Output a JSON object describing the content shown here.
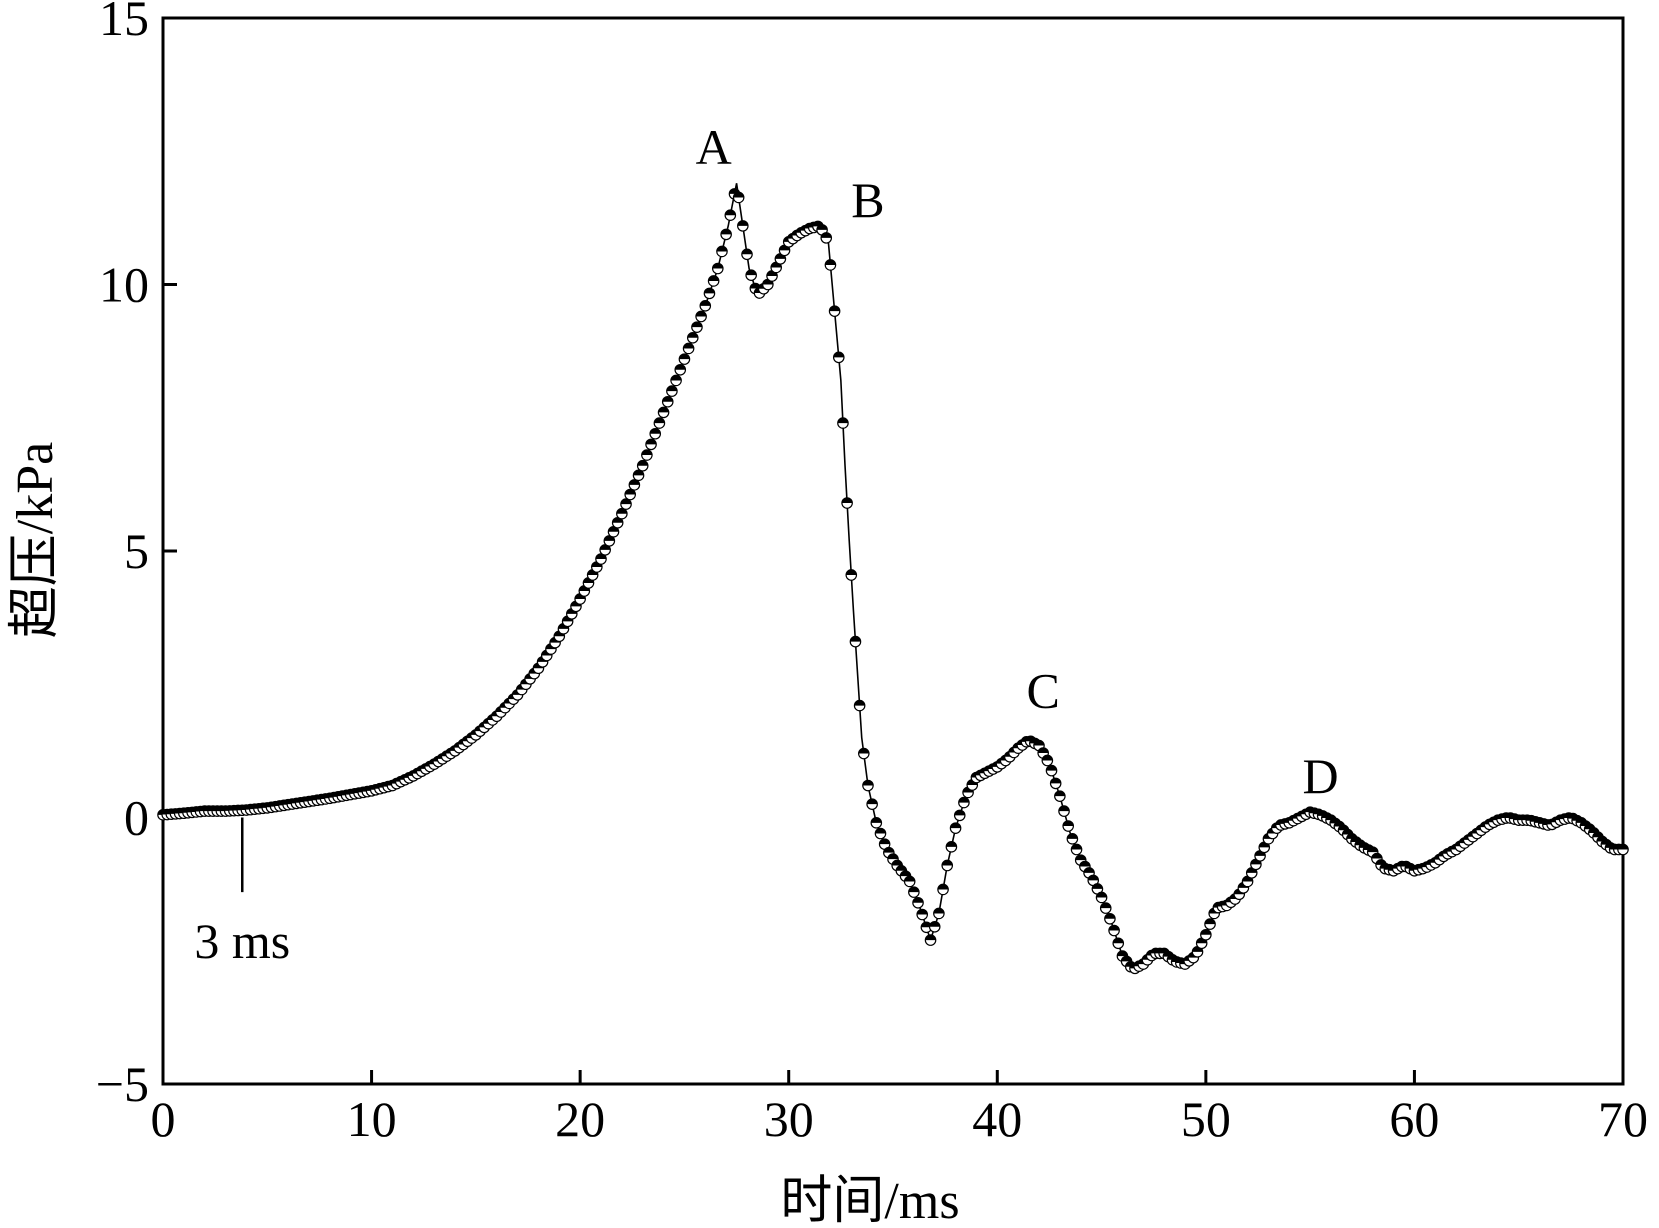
{
  "chart_data": {
    "type": "scatter",
    "title": "",
    "xlabel": "时间/ms",
    "ylabel": "超压/kPa",
    "xlim": [
      0,
      70
    ],
    "ylim": [
      -5,
      15
    ],
    "x_ticks": [
      "0",
      "10",
      "20",
      "30",
      "40",
      "50",
      "60",
      "70"
    ],
    "y_ticks": [
      "−5",
      "0",
      "5",
      "10",
      "15"
    ],
    "grid": false,
    "legend": "none",
    "colors": {
      "line": "#000000",
      "marker_top": "#000000",
      "marker_bottom": "#ffffff",
      "axis": "#000000"
    },
    "annotations": [
      {
        "text": "A",
        "x": 26.4,
        "y": 12.6
      },
      {
        "text": "B",
        "x": 33.8,
        "y": 11.6
      },
      {
        "text": "C",
        "x": 42.2,
        "y": 2.4
      },
      {
        "text": "D",
        "x": 55.5,
        "y": 0.8
      }
    ],
    "marker_note": {
      "text": "3 ms",
      "x": 3.8,
      "y_top": 0.0,
      "y_bottom": -1.4,
      "label_y": -2.3
    },
    "series": [
      {
        "points": [
          [
            0,
            0.05
          ],
          [
            1,
            0.08
          ],
          [
            2,
            0.12
          ],
          [
            3,
            0.12
          ],
          [
            4,
            0.14
          ],
          [
            5,
            0.18
          ],
          [
            6,
            0.24
          ],
          [
            7,
            0.3
          ],
          [
            8,
            0.36
          ],
          [
            9,
            0.43
          ],
          [
            10,
            0.5
          ],
          [
            11,
            0.6
          ],
          [
            12,
            0.78
          ],
          [
            13,
            1.0
          ],
          [
            14,
            1.25
          ],
          [
            15,
            1.55
          ],
          [
            16,
            1.9
          ],
          [
            17,
            2.3
          ],
          [
            18,
            2.8
          ],
          [
            19,
            3.4
          ],
          [
            20,
            4.1
          ],
          [
            21,
            4.85
          ],
          [
            22,
            5.7
          ],
          [
            23,
            6.6
          ],
          [
            24,
            7.6
          ],
          [
            25,
            8.6
          ],
          [
            26,
            9.6
          ],
          [
            26.6,
            10.3
          ],
          [
            27.1,
            11.1
          ],
          [
            27.5,
            11.9
          ],
          [
            27.8,
            11.1
          ],
          [
            28.1,
            10.3
          ],
          [
            28.5,
            9.8
          ],
          [
            29.0,
            10.0
          ],
          [
            29.5,
            10.4
          ],
          [
            30.0,
            10.8
          ],
          [
            30.5,
            10.95
          ],
          [
            31.0,
            11.05
          ],
          [
            31.5,
            11.1
          ],
          [
            31.9,
            10.8
          ],
          [
            32.2,
            9.5
          ],
          [
            32.5,
            8.2
          ],
          [
            32.7,
            6.6
          ],
          [
            32.9,
            5.2
          ],
          [
            33.1,
            3.9
          ],
          [
            33.3,
            2.7
          ],
          [
            33.5,
            1.5
          ],
          [
            33.8,
            0.6
          ],
          [
            34.2,
            -0.1
          ],
          [
            34.7,
            -0.6
          ],
          [
            35.2,
            -0.9
          ],
          [
            35.8,
            -1.2
          ],
          [
            36.3,
            -1.7
          ],
          [
            36.8,
            -2.3
          ],
          [
            37.2,
            -1.8
          ],
          [
            37.6,
            -0.9
          ],
          [
            38.0,
            -0.2
          ],
          [
            38.5,
            0.4
          ],
          [
            39.0,
            0.75
          ],
          [
            39.5,
            0.85
          ],
          [
            40.0,
            0.95
          ],
          [
            40.5,
            1.1
          ],
          [
            41.0,
            1.3
          ],
          [
            41.5,
            1.45
          ],
          [
            42.0,
            1.35
          ],
          [
            42.5,
            1.0
          ],
          [
            43.0,
            0.4
          ],
          [
            43.5,
            -0.3
          ],
          [
            44.0,
            -0.8
          ],
          [
            44.5,
            -1.1
          ],
          [
            45.0,
            -1.5
          ],
          [
            45.5,
            -2.0
          ],
          [
            46.0,
            -2.6
          ],
          [
            46.5,
            -2.85
          ],
          [
            47.0,
            -2.75
          ],
          [
            47.5,
            -2.55
          ],
          [
            48.0,
            -2.55
          ],
          [
            48.5,
            -2.7
          ],
          [
            49.0,
            -2.75
          ],
          [
            49.5,
            -2.6
          ],
          [
            50.0,
            -2.2
          ],
          [
            50.5,
            -1.7
          ],
          [
            51.0,
            -1.65
          ],
          [
            51.5,
            -1.5
          ],
          [
            52.0,
            -1.2
          ],
          [
            52.5,
            -0.8
          ],
          [
            53.0,
            -0.4
          ],
          [
            53.5,
            -0.15
          ],
          [
            54.0,
            -0.1
          ],
          [
            54.5,
            0.0
          ],
          [
            55.0,
            0.1
          ],
          [
            55.5,
            0.05
          ],
          [
            56.0,
            -0.05
          ],
          [
            56.5,
            -0.2
          ],
          [
            57.0,
            -0.4
          ],
          [
            57.5,
            -0.55
          ],
          [
            58.0,
            -0.65
          ],
          [
            58.5,
            -0.95
          ],
          [
            59.0,
            -1.0
          ],
          [
            59.5,
            -0.9
          ],
          [
            60.0,
            -1.0
          ],
          [
            60.5,
            -0.95
          ],
          [
            61.0,
            -0.85
          ],
          [
            61.5,
            -0.7
          ],
          [
            62.0,
            -0.6
          ],
          [
            62.5,
            -0.45
          ],
          [
            63.0,
            -0.3
          ],
          [
            63.5,
            -0.15
          ],
          [
            64.0,
            -0.05
          ],
          [
            64.5,
            0.0
          ],
          [
            65.0,
            -0.05
          ],
          [
            65.5,
            -0.05
          ],
          [
            66.0,
            -0.1
          ],
          [
            66.5,
            -0.15
          ],
          [
            67.0,
            -0.05
          ],
          [
            67.5,
            -0.0
          ],
          [
            68.0,
            -0.1
          ],
          [
            68.5,
            -0.25
          ],
          [
            69.0,
            -0.45
          ],
          [
            69.5,
            -0.6
          ],
          [
            70.0,
            -0.6
          ]
        ]
      }
    ]
  }
}
